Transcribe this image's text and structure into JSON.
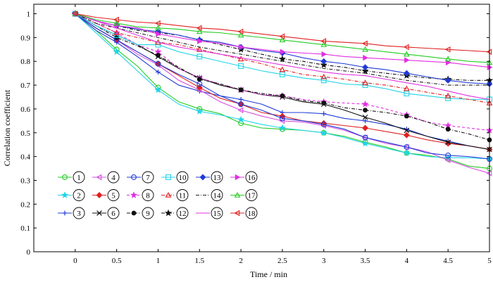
{
  "chart_data": {
    "type": "line",
    "title": "",
    "xlabel": "Time / min",
    "ylabel": "Correlation coefficient",
    "xlim": [
      -0.5,
      5.0
    ],
    "ylim": [
      0,
      1.04
    ],
    "xticks": [
      0,
      0.5,
      1,
      1.5,
      2,
      2.5,
      3,
      3.5,
      4,
      4.5,
      5
    ],
    "xtick_labels": [
      "0",
      "0.5",
      "1",
      "1.5",
      "2",
      "2.5",
      "3",
      "3.5",
      "4",
      "4.5",
      "5"
    ],
    "yticks": [
      0,
      0.1,
      0.2,
      0.3,
      0.4,
      0.5,
      0.6,
      0.7,
      0.8,
      0.9,
      1
    ],
    "ytick_labels": [
      "0",
      "0.1",
      "0.2",
      "0.3",
      "0.4",
      "0.5",
      "0.6",
      "0.7",
      "0.8",
      "0.9",
      "1"
    ],
    "grid": false,
    "legend_position": "bottom-left",
    "x": [
      0,
      0.25,
      0.5,
      0.75,
      1,
      1.25,
      1.5,
      1.75,
      2,
      2.25,
      2.5,
      2.75,
      3,
      3.25,
      3.5,
      3.75,
      4,
      4.25,
      4.5,
      4.75,
      5
    ],
    "series": [
      {
        "name": "1",
        "color": "#22cc22",
        "marker": "circle",
        "dash": "solid",
        "values": [
          1.0,
          0.93,
          0.85,
          0.78,
          0.69,
          0.63,
          0.6,
          0.58,
          0.54,
          0.52,
          0.515,
          0.51,
          0.5,
          0.485,
          0.46,
          0.44,
          0.415,
          0.405,
          0.39,
          0.36,
          0.35
        ]
      },
      {
        "name": "2",
        "color": "#22d3e8",
        "marker": "star",
        "dash": "solid",
        "values": [
          1.0,
          0.92,
          0.84,
          0.76,
          0.68,
          0.62,
          0.59,
          0.575,
          0.555,
          0.535,
          0.52,
          0.51,
          0.5,
          0.48,
          0.455,
          0.435,
          0.415,
          0.4,
          0.395,
          0.395,
          0.39
        ]
      },
      {
        "name": "3",
        "color": "#1f3bd6",
        "marker": "plus",
        "dash": "solid",
        "values": [
          1.0,
          0.93,
          0.88,
          0.82,
          0.755,
          0.7,
          0.675,
          0.655,
          0.64,
          0.62,
          0.585,
          0.585,
          0.58,
          0.56,
          0.55,
          0.535,
          0.515,
          0.485,
          0.465,
          0.445,
          0.43
        ]
      },
      {
        "name": "4",
        "color": "#d44ee0",
        "marker": "triangle-left",
        "dash": "solid",
        "values": [
          1.0,
          0.94,
          0.89,
          0.83,
          0.785,
          0.72,
          0.68,
          0.63,
          0.595,
          0.57,
          0.55,
          0.545,
          0.53,
          0.51,
          0.48,
          0.455,
          0.44,
          0.42,
          0.385,
          0.355,
          0.33
        ]
      },
      {
        "name": "5",
        "color": "#e02020",
        "marker": "diamond",
        "dash": "solid",
        "values": [
          1.0,
          0.94,
          0.89,
          0.84,
          0.79,
          0.74,
          0.69,
          0.645,
          0.62,
          0.585,
          0.57,
          0.55,
          0.54,
          0.53,
          0.52,
          0.505,
          0.49,
          0.47,
          0.455,
          0.445,
          0.43
        ]
      },
      {
        "name": "6",
        "color": "#111111",
        "marker": "x",
        "dash": "solid",
        "values": [
          1.0,
          0.95,
          0.91,
          0.87,
          0.82,
          0.77,
          0.73,
          0.7,
          0.68,
          0.66,
          0.65,
          0.63,
          0.62,
          0.595,
          0.565,
          0.54,
          0.51,
          0.485,
          0.46,
          0.445,
          0.43
        ]
      },
      {
        "name": "7",
        "color": "#1f3bd6",
        "marker": "circle",
        "dash": "solid",
        "values": [
          1.0,
          0.94,
          0.89,
          0.84,
          0.79,
          0.745,
          0.705,
          0.655,
          0.62,
          0.595,
          0.56,
          0.55,
          0.535,
          0.515,
          0.48,
          0.46,
          0.44,
          0.415,
          0.405,
          0.4,
          0.39
        ]
      },
      {
        "name": "8",
        "color": "#e030e0",
        "marker": "star",
        "dash": "dash",
        "values": [
          1.0,
          0.96,
          0.92,
          0.87,
          0.84,
          0.77,
          0.73,
          0.705,
          0.68,
          0.66,
          0.655,
          0.64,
          0.63,
          0.625,
          0.62,
          0.6,
          0.575,
          0.545,
          0.53,
          0.52,
          0.51
        ]
      },
      {
        "name": "9",
        "color": "#111111",
        "marker": "dot",
        "dash": "dashdot",
        "values": [
          1.0,
          0.95,
          0.9,
          0.865,
          0.825,
          0.775,
          0.725,
          0.705,
          0.68,
          0.665,
          0.655,
          0.635,
          0.625,
          0.605,
          0.595,
          0.585,
          0.57,
          0.545,
          0.515,
          0.495,
          0.47
        ]
      },
      {
        "name": "10",
        "color": "#22d3e8",
        "marker": "square",
        "dash": "solid",
        "values": [
          1.0,
          0.95,
          0.91,
          0.87,
          0.87,
          0.84,
          0.82,
          0.8,
          0.78,
          0.76,
          0.745,
          0.73,
          0.72,
          0.705,
          0.7,
          0.685,
          0.665,
          0.655,
          0.645,
          0.64,
          0.64
        ]
      },
      {
        "name": "11",
        "color": "#e02020",
        "marker": "triangle-up",
        "dash": "dashdot",
        "values": [
          1.0,
          0.96,
          0.92,
          0.9,
          0.88,
          0.87,
          0.85,
          0.83,
          0.81,
          0.79,
          0.765,
          0.745,
          0.735,
          0.725,
          0.71,
          0.7,
          0.685,
          0.67,
          0.655,
          0.64,
          0.625
        ]
      },
      {
        "name": "12",
        "color": "#111111",
        "marker": "star",
        "dash": "dashdot",
        "values": [
          1.0,
          0.97,
          0.95,
          0.93,
          0.92,
          0.91,
          0.89,
          0.87,
          0.85,
          0.83,
          0.81,
          0.8,
          0.785,
          0.775,
          0.76,
          0.75,
          0.74,
          0.73,
          0.725,
          0.72,
          0.72
        ]
      },
      {
        "name": "13",
        "color": "#1f3bd6",
        "marker": "diamond",
        "dash": "solid",
        "values": [
          1.0,
          0.97,
          0.95,
          0.935,
          0.925,
          0.91,
          0.89,
          0.88,
          0.86,
          0.845,
          0.835,
          0.815,
          0.8,
          0.79,
          0.775,
          0.765,
          0.75,
          0.735,
          0.72,
          0.71,
          0.705
        ]
      },
      {
        "name": "14",
        "color": "#222222",
        "marker": "none",
        "dash": "dashdot",
        "values": [
          1.0,
          0.96,
          0.94,
          0.92,
          0.9,
          0.88,
          0.86,
          0.845,
          0.83,
          0.815,
          0.8,
          0.785,
          0.77,
          0.76,
          0.75,
          0.735,
          0.72,
          0.71,
          0.7,
          0.7,
          0.7
        ]
      },
      {
        "name": "15",
        "color": "#e030e0",
        "marker": "none",
        "dash": "solid",
        "values": [
          1.0,
          0.97,
          0.94,
          0.91,
          0.88,
          0.86,
          0.845,
          0.83,
          0.815,
          0.8,
          0.785,
          0.77,
          0.755,
          0.745,
          0.74,
          0.725,
          0.71,
          0.695,
          0.675,
          0.655,
          0.64
        ]
      },
      {
        "name": "16",
        "color": "#e030e0",
        "marker": "triangle-right",
        "dash": "solid",
        "values": [
          1.0,
          0.97,
          0.95,
          0.94,
          0.915,
          0.9,
          0.885,
          0.875,
          0.86,
          0.85,
          0.84,
          0.835,
          0.83,
          0.82,
          0.815,
          0.81,
          0.805,
          0.8,
          0.795,
          0.785,
          0.775
        ]
      },
      {
        "name": "17",
        "color": "#22cc22",
        "marker": "triangle-up",
        "dash": "solid",
        "values": [
          1.0,
          0.975,
          0.96,
          0.945,
          0.94,
          0.935,
          0.925,
          0.92,
          0.91,
          0.9,
          0.89,
          0.88,
          0.87,
          0.86,
          0.85,
          0.84,
          0.83,
          0.82,
          0.81,
          0.8,
          0.795
        ]
      },
      {
        "name": "18",
        "color": "#e02020",
        "marker": "triangle-left",
        "dash": "solid",
        "values": [
          1.0,
          0.985,
          0.975,
          0.965,
          0.96,
          0.95,
          0.94,
          0.935,
          0.925,
          0.915,
          0.905,
          0.895,
          0.885,
          0.88,
          0.875,
          0.865,
          0.86,
          0.855,
          0.85,
          0.845,
          0.84
        ]
      }
    ]
  }
}
